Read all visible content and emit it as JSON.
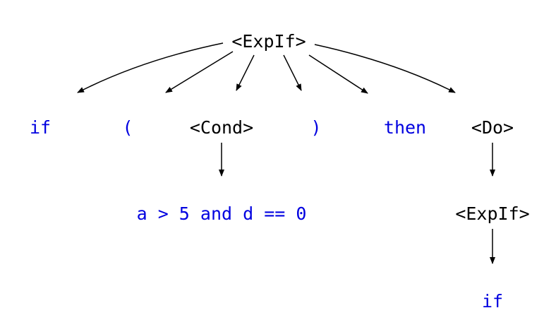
{
  "tree": {
    "root": "<ExpIf>",
    "children": {
      "if": "if",
      "lparen": "(",
      "cond": "<Cond>",
      "rparen": ")",
      "then": "then",
      "do": "<Do>"
    },
    "cond_expansion": "a > 5 and d == 0",
    "do_expansion": {
      "expif": "<ExpIf>",
      "if": "if"
    }
  },
  "colors": {
    "nonterminal": "#000000",
    "terminal": "#0000e0",
    "edge": "#000000"
  }
}
